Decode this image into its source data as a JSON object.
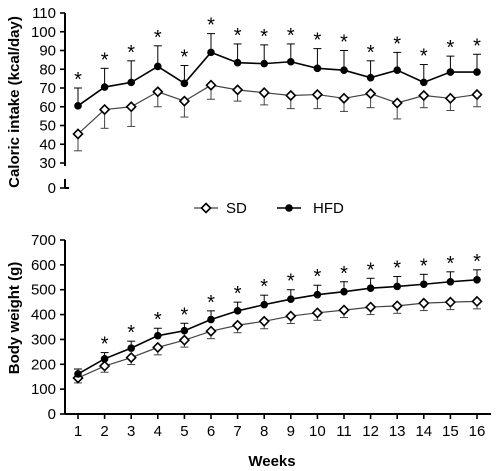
{
  "chart_data": [
    {
      "type": "line",
      "ylabel": "Caloric intake (kcal/day)",
      "ylim": [
        0,
        110
      ],
      "yaxis_break": [
        0,
        30
      ],
      "yticks": [
        0,
        30,
        40,
        50,
        60,
        70,
        80,
        90,
        100,
        110
      ],
      "x": [
        1,
        2,
        3,
        4,
        5,
        6,
        7,
        8,
        9,
        10,
        11,
        12,
        13,
        14,
        15,
        16
      ],
      "series": [
        {
          "name": "SD",
          "marker": "diamond-open",
          "values": [
            45.5,
            58.5,
            60,
            68,
            63,
            71.5,
            69,
            67.5,
            66,
            66.5,
            64.5,
            67,
            62,
            66,
            64.5,
            66.5
          ],
          "errors": [
            9,
            10,
            10.5,
            8,
            8.5,
            7.5,
            6,
            6.5,
            7,
            7.5,
            7,
            7.5,
            8.5,
            6.5,
            6.5,
            6.5
          ]
        },
        {
          "name": "HFD",
          "marker": "circle-filled",
          "values": [
            60.5,
            70.5,
            73,
            81.5,
            72.5,
            89,
            83.5,
            83,
            84,
            80.5,
            79.5,
            75.5,
            79.5,
            73,
            78.5,
            78.5
          ],
          "errors": [
            9.5,
            10,
            11.5,
            11,
            9.5,
            10,
            10,
            10,
            9.5,
            10.5,
            10.5,
            9,
            9.5,
            9.5,
            8.5,
            9.5
          ]
        }
      ],
      "annotations": [
        "*",
        "*",
        "*",
        "*",
        "*",
        "*",
        "*",
        "*",
        "*",
        "*",
        "*",
        "*",
        "*",
        "*",
        "*",
        "*"
      ]
    },
    {
      "type": "line",
      "xlabel": "Weeks",
      "ylabel": "Body weight (g)",
      "ylim": [
        0,
        700
      ],
      "yticks": [
        0,
        100,
        200,
        300,
        400,
        500,
        600,
        700
      ],
      "x": [
        1,
        2,
        3,
        4,
        5,
        6,
        7,
        8,
        9,
        10,
        11,
        12,
        13,
        14,
        15,
        16
      ],
      "series": [
        {
          "name": "SD",
          "marker": "diamond-open",
          "values": [
            145,
            193,
            227,
            268,
            297,
            333,
            357,
            373,
            394,
            407,
            418,
            430,
            435,
            446,
            450,
            453
          ],
          "errors": [
            20,
            25,
            28,
            30,
            28,
            30,
            30,
            30,
            30,
            30,
            30,
            30,
            30,
            30,
            30,
            30
          ]
        },
        {
          "name": "HFD",
          "marker": "circle-filled",
          "values": [
            161,
            222,
            265,
            315,
            335,
            380,
            415,
            440,
            462,
            480,
            492,
            506,
            513,
            522,
            532,
            540
          ],
          "errors": [
            20,
            25,
            28,
            30,
            30,
            35,
            35,
            38,
            38,
            38,
            40,
            40,
            40,
            40,
            40,
            40
          ]
        }
      ],
      "annotations_from_week": 2,
      "annotation": "*"
    }
  ],
  "legend": {
    "items": [
      {
        "label": "SD",
        "marker": "diamond-open"
      },
      {
        "label": "HFD",
        "marker": "circle-filled"
      }
    ],
    "placement": "between-panels"
  }
}
